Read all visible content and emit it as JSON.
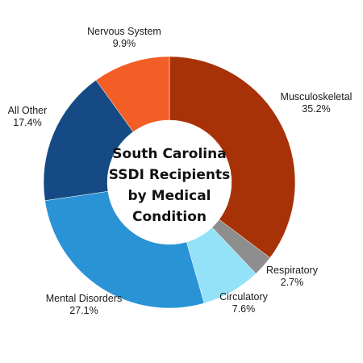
{
  "chart_data": {
    "type": "pie",
    "variant": "donut",
    "title_lines": [
      "South Carolina",
      "SSDI Recipients",
      "by Medical",
      "Condition"
    ],
    "slices": [
      {
        "name": "Musculoskeletal",
        "value": 35.2,
        "value_label": "35.2%",
        "color": "#a83208"
      },
      {
        "name": "Respiratory",
        "value": 2.7,
        "value_label": "2.7%",
        "color": "#8e8e8e"
      },
      {
        "name": "Circulatory",
        "value": 7.6,
        "value_label": "7.6%",
        "color": "#94e2f8"
      },
      {
        "name": "Mental Disorders",
        "value": 27.1,
        "value_label": "27.1%",
        "color": "#2a93d5"
      },
      {
        "name": "All Other",
        "value": 17.4,
        "value_label": "17.4%",
        "color": "#154a84"
      },
      {
        "name": "Nervous System",
        "value": 9.9,
        "value_label": "9.9%",
        "color": "#f35e26"
      }
    ]
  }
}
